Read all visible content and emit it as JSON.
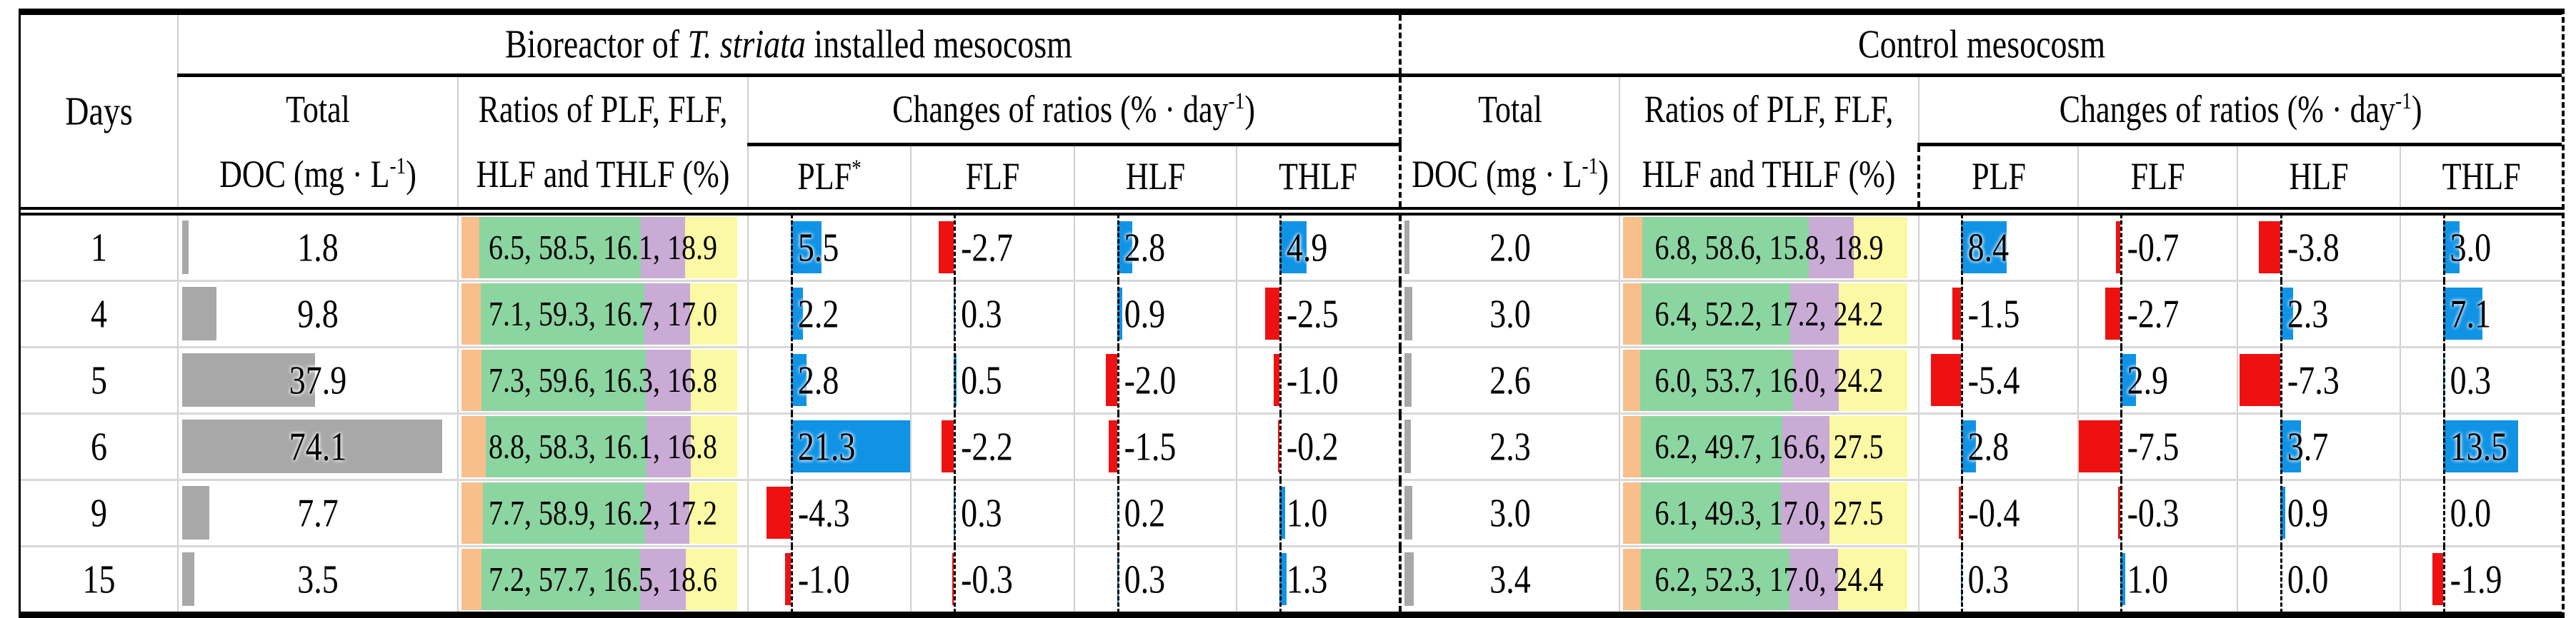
{
  "header": {
    "days": "Days",
    "bio_title": {
      "pre": "Bioreactor of ",
      "italic": "T. striata",
      "post": " installed mesocosm"
    },
    "control_title": "Control mesocosm",
    "total_line1": "Total",
    "doc_unit": {
      "pre": "DOC (mg · L",
      "sup": "-1",
      "post": ")"
    },
    "ratios_line1": "Ratios of PLF, FLF,",
    "ratios_line2": "HLF and THLF (%)",
    "changes": {
      "pre": "Changes of ratios (% · day",
      "sup": "-1",
      "post": ")"
    },
    "bio_sub": [
      {
        "label": "PLF",
        "sup": "*"
      },
      {
        "label": "FLF"
      },
      {
        "label": "HLF"
      },
      {
        "label": "THLF"
      }
    ],
    "control_sub": [
      {
        "label": "PLF"
      },
      {
        "label": "FLF"
      },
      {
        "label": "HLF"
      },
      {
        "label": "THLF"
      }
    ]
  },
  "rows": [
    {
      "day": "1",
      "bio": {
        "doc": 1.8,
        "ratios": [
          6.5,
          58.5,
          16.1,
          18.9
        ],
        "changes": [
          5.5,
          -2.7,
          2.8,
          4.9
        ]
      },
      "ctrl": {
        "doc": 2.0,
        "ratios": [
          6.8,
          58.6,
          15.8,
          18.9
        ],
        "changes": [
          8.4,
          -0.7,
          -3.8,
          3.0
        ]
      }
    },
    {
      "day": "4",
      "bio": {
        "doc": 9.8,
        "ratios": [
          7.1,
          59.3,
          16.7,
          17.0
        ],
        "changes": [
          2.2,
          0.3,
          0.9,
          -2.5
        ]
      },
      "ctrl": {
        "doc": 3.0,
        "ratios": [
          6.4,
          52.2,
          17.2,
          24.2
        ],
        "changes": [
          -1.5,
          -2.7,
          2.3,
          7.1
        ]
      }
    },
    {
      "day": "5",
      "bio": {
        "doc": 37.9,
        "ratios": [
          7.3,
          59.6,
          16.3,
          16.8
        ],
        "changes": [
          2.8,
          0.5,
          -2.0,
          -1.0
        ]
      },
      "ctrl": {
        "doc": 2.6,
        "ratios": [
          6.0,
          53.7,
          16.0,
          24.2
        ],
        "changes": [
          -5.4,
          2.9,
          -7.3,
          0.3
        ]
      }
    },
    {
      "day": "6",
      "bio": {
        "doc": 74.1,
        "ratios": [
          8.8,
          58.3,
          16.1,
          16.8
        ],
        "changes": [
          21.3,
          -2.2,
          -1.5,
          -0.2
        ]
      },
      "ctrl": {
        "doc": 2.3,
        "ratios": [
          6.2,
          49.7,
          16.6,
          27.5
        ],
        "changes": [
          2.8,
          -7.5,
          3.7,
          13.5
        ]
      }
    },
    {
      "day": "9",
      "bio": {
        "doc": 7.7,
        "ratios": [
          7.7,
          58.9,
          16.2,
          17.2
        ],
        "changes": [
          -4.3,
          0.3,
          0.2,
          1.0
        ]
      },
      "ctrl": {
        "doc": 3.0,
        "ratios": [
          6.1,
          49.3,
          17.0,
          27.5
        ],
        "changes": [
          -0.4,
          -0.3,
          0.9,
          0.0
        ]
      }
    },
    {
      "day": "15",
      "bio": {
        "doc": 3.5,
        "ratios": [
          7.2,
          57.7,
          16.5,
          18.6
        ],
        "changes": [
          -1.0,
          -0.3,
          0.3,
          1.3
        ]
      },
      "ctrl": {
        "doc": 3.4,
        "ratios": [
          6.2,
          52.3,
          17.0,
          24.4
        ],
        "changes": [
          0.3,
          1.0,
          0.0,
          -1.9
        ]
      }
    }
  ],
  "colors": {
    "bar_positive": "#1193E5",
    "bar_negative": "#EE1111",
    "doc_bar": "#A8A8A8",
    "ratio_segments": [
      "#F8BE8C",
      "#8BD5A0",
      "#C9ABD6",
      "#FBF9A3"
    ]
  }
}
